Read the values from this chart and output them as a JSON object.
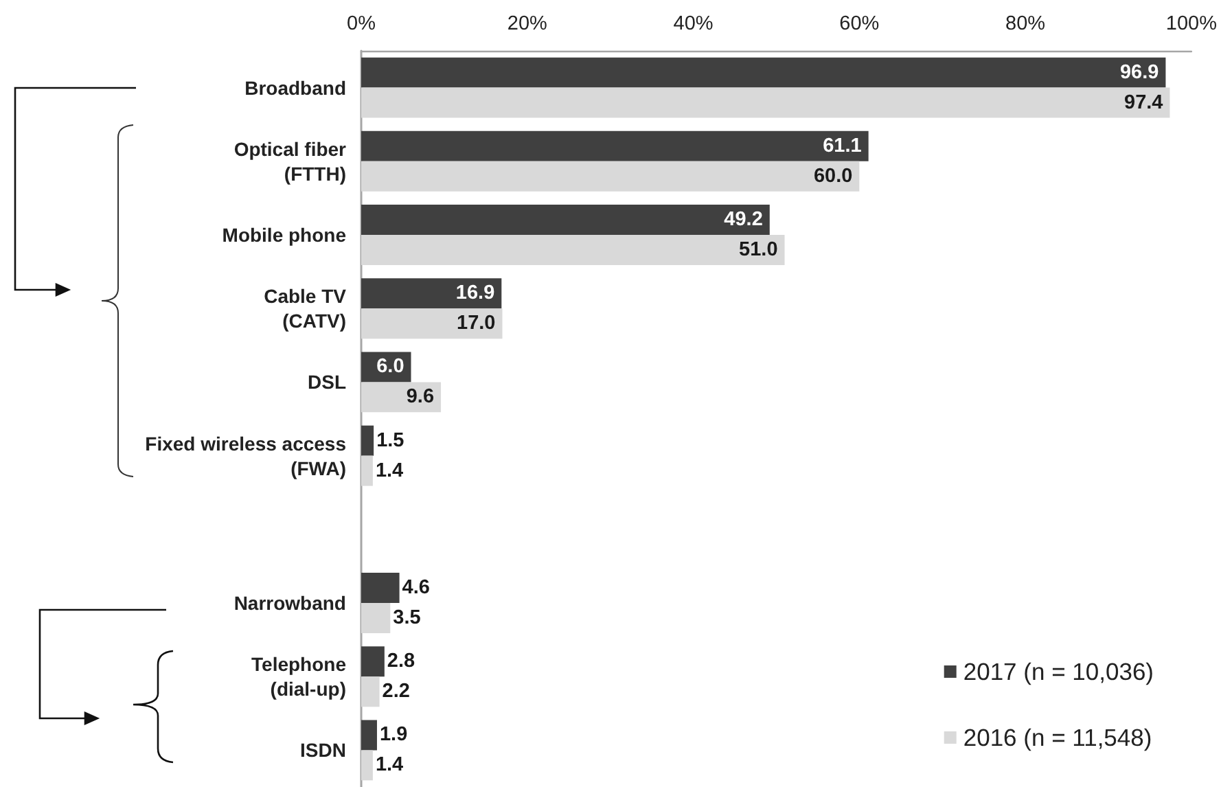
{
  "chart_data": {
    "type": "bar",
    "orientation": "horizontal",
    "categories": [
      "Broadband",
      "Optical fiber (FTTH)",
      "Mobile phone",
      "Cable TV (CATV)",
      "DSL",
      "Fixed wireless access (FWA)",
      null,
      "Narrowband",
      "Telephone (dial-up)",
      "ISDN"
    ],
    "series": [
      {
        "name": "2017 (n = 10,036)",
        "color": "#404040",
        "values": [
          96.9,
          61.1,
          49.2,
          16.9,
          6.0,
          1.5,
          null,
          4.6,
          2.8,
          1.9
        ],
        "value_labels": [
          "96.9",
          "61.1",
          "49.2",
          "16.9",
          "6.0",
          "1.5",
          null,
          "4.6",
          "2.8",
          "1.9"
        ]
      },
      {
        "name": "2016 (n = 11,548)",
        "color": "#d9d9d9",
        "values": [
          97.4,
          60.0,
          51.0,
          17.0,
          9.6,
          1.4,
          null,
          3.5,
          2.2,
          1.4
        ],
        "value_labels": [
          "97.4",
          "60.0",
          "51.0",
          "17.0",
          "9.6",
          "1.4",
          null,
          "3.5",
          "2.2",
          "1.4"
        ]
      }
    ],
    "xlim": [
      0,
      100
    ],
    "xticks": [
      {
        "value": 0,
        "label": "0%"
      },
      {
        "value": 20,
        "label": "20%"
      },
      {
        "value": 40,
        "label": "40%"
      },
      {
        "value": 60,
        "label": "60%"
      },
      {
        "value": 80,
        "label": "80%"
      },
      {
        "value": 100,
        "label": "100%"
      }
    ],
    "legend": "bottom right"
  }
}
